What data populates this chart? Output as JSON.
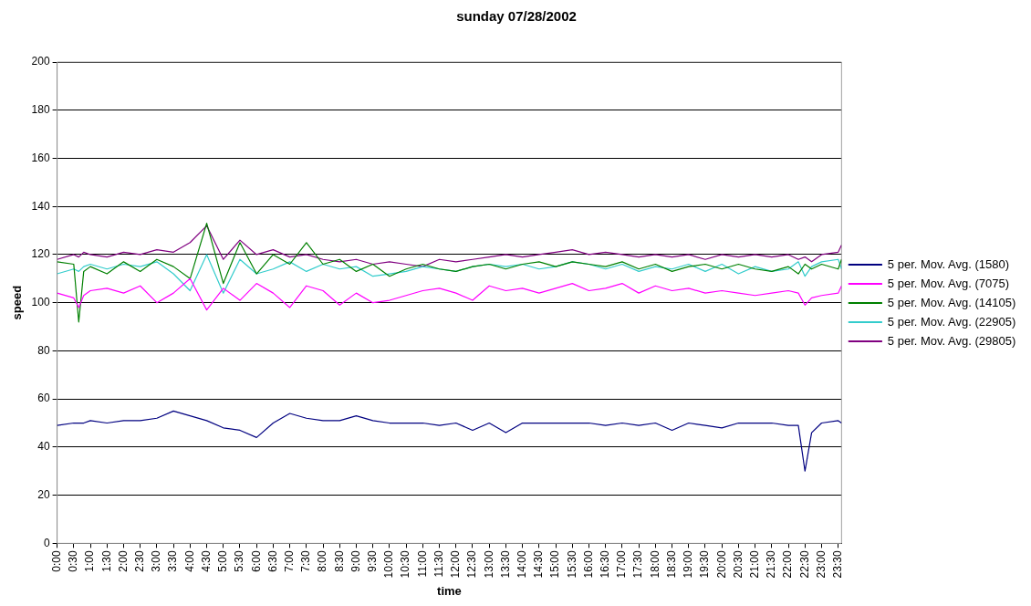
{
  "chart_data": {
    "type": "line",
    "title": "sunday 07/28/2002",
    "xlabel": "time",
    "ylabel": "speed",
    "x": [
      0,
      0.5,
      0.65,
      0.8,
      1,
      1.5,
      2,
      2.5,
      3,
      3.5,
      4,
      4.5,
      5,
      5.5,
      6,
      6.5,
      7,
      7.5,
      8,
      8.5,
      9,
      9.5,
      10,
      10.5,
      11,
      11.5,
      12,
      12.5,
      13,
      13.5,
      14,
      14.5,
      15,
      15.5,
      16,
      16.5,
      17,
      17.5,
      18,
      18.5,
      19,
      19.5,
      20,
      20.5,
      21,
      21.5,
      22,
      22.3,
      22.5,
      22.7,
      23,
      23.5,
      23.6
    ],
    "series": [
      {
        "name": "5 per. Mov. Avg. (1580)",
        "color": "#000080",
        "values": [
          49,
          50,
          50,
          50,
          51,
          50,
          51,
          51,
          52,
          55,
          53,
          51,
          48,
          47,
          44,
          50,
          54,
          52,
          51,
          51,
          53,
          51,
          50,
          50,
          50,
          49,
          50,
          47,
          50,
          46,
          50,
          50,
          50,
          50,
          50,
          49,
          50,
          49,
          50,
          47,
          50,
          49,
          48,
          50,
          50,
          50,
          49,
          49,
          30,
          46,
          50,
          51,
          50
        ]
      },
      {
        "name": "5 per. Mov. Avg. (7075)",
        "color": "#ff00ff",
        "values": [
          104,
          102,
          98,
          103,
          105,
          106,
          104,
          107,
          100,
          104,
          110,
          97,
          106,
          101,
          108,
          104,
          98,
          107,
          105,
          99,
          104,
          100,
          101,
          103,
          105,
          106,
          104,
          101,
          107,
          105,
          106,
          104,
          106,
          108,
          105,
          106,
          108,
          104,
          107,
          105,
          106,
          104,
          105,
          104,
          103,
          104,
          105,
          104,
          99,
          102,
          103,
          104,
          107
        ]
      },
      {
        "name": "5 per. Mov. Avg. (14105)",
        "color": "#008000",
        "values": [
          117,
          116,
          92,
          113,
          115,
          112,
          117,
          113,
          118,
          115,
          110,
          133,
          108,
          125,
          112,
          120,
          116,
          125,
          116,
          118,
          113,
          116,
          111,
          114,
          116,
          114,
          113,
          115,
          116,
          114,
          116,
          117,
          115,
          117,
          116,
          115,
          117,
          114,
          116,
          113,
          115,
          116,
          114,
          116,
          114,
          113,
          115,
          112,
          116,
          114,
          116,
          114,
          118
        ]
      },
      {
        "name": "5 per. Mov. Avg. (22905)",
        "color": "#33cccc",
        "values": [
          112,
          114,
          113,
          115,
          116,
          114,
          116,
          115,
          117,
          112,
          105,
          120,
          104,
          118,
          112,
          114,
          117,
          113,
          116,
          114,
          115,
          111,
          112,
          113,
          115,
          114,
          113,
          115,
          116,
          115,
          116,
          114,
          115,
          117,
          116,
          114,
          116,
          113,
          115,
          114,
          116,
          113,
          116,
          112,
          115,
          113,
          114,
          117,
          111,
          115,
          117,
          118,
          114
        ]
      },
      {
        "name": "5 per. Mov. Avg. (29805)",
        "color": "#800080",
        "values": [
          118,
          120,
          119,
          121,
          120,
          119,
          121,
          120,
          122,
          121,
          125,
          132,
          118,
          126,
          120,
          122,
          119,
          120,
          118,
          117,
          118,
          116,
          117,
          116,
          115,
          118,
          117,
          118,
          119,
          120,
          119,
          120,
          121,
          122,
          120,
          121,
          120,
          119,
          120,
          119,
          120,
          118,
          120,
          119,
          120,
          119,
          120,
          118,
          119,
          117,
          120,
          121,
          124
        ]
      }
    ],
    "xlim": [
      0,
      23.6
    ],
    "xticks": [
      {
        "value": 0,
        "label": "0:00"
      },
      {
        "value": 0.5,
        "label": "0:30"
      },
      {
        "value": 1,
        "label": "1:00"
      },
      {
        "value": 1.5,
        "label": "1:30"
      },
      {
        "value": 2,
        "label": "2:00"
      },
      {
        "value": 2.5,
        "label": "2:30"
      },
      {
        "value": 3,
        "label": "3:00"
      },
      {
        "value": 3.5,
        "label": "3:30"
      },
      {
        "value": 4,
        "label": "4:00"
      },
      {
        "value": 4.5,
        "label": "4:30"
      },
      {
        "value": 5,
        "label": "5:00"
      },
      {
        "value": 5.5,
        "label": "5:30"
      },
      {
        "value": 6,
        "label": "6:00"
      },
      {
        "value": 6.5,
        "label": "6:30"
      },
      {
        "value": 7,
        "label": "7:00"
      },
      {
        "value": 7.5,
        "label": "7:30"
      },
      {
        "value": 8,
        "label": "8:00"
      },
      {
        "value": 8.5,
        "label": "8:30"
      },
      {
        "value": 9,
        "label": "9:00"
      },
      {
        "value": 9.5,
        "label": "9:30"
      },
      {
        "value": 10,
        "label": "10:00"
      },
      {
        "value": 10.5,
        "label": "10:30"
      },
      {
        "value": 11,
        "label": "11:00"
      },
      {
        "value": 11.5,
        "label": "11:30"
      },
      {
        "value": 12,
        "label": "12:00"
      },
      {
        "value": 12.5,
        "label": "12:30"
      },
      {
        "value": 13,
        "label": "13:00"
      },
      {
        "value": 13.5,
        "label": "13:30"
      },
      {
        "value": 14,
        "label": "14:00"
      },
      {
        "value": 14.5,
        "label": "14:30"
      },
      {
        "value": 15,
        "label": "15:00"
      },
      {
        "value": 15.5,
        "label": "15:30"
      },
      {
        "value": 16,
        "label": "16:00"
      },
      {
        "value": 16.5,
        "label": "16:30"
      },
      {
        "value": 17,
        "label": "17:00"
      },
      {
        "value": 17.5,
        "label": "17:30"
      },
      {
        "value": 18,
        "label": "18:00"
      },
      {
        "value": 18.5,
        "label": "18:30"
      },
      {
        "value": 19,
        "label": "19:00"
      },
      {
        "value": 19.5,
        "label": "19:30"
      },
      {
        "value": 20,
        "label": "20:00"
      },
      {
        "value": 20.5,
        "label": "20:30"
      },
      {
        "value": 21,
        "label": "21:00"
      },
      {
        "value": 21.5,
        "label": "21:30"
      },
      {
        "value": 22,
        "label": "22:00"
      },
      {
        "value": 22.5,
        "label": "22:30"
      },
      {
        "value": 23,
        "label": "23:00"
      },
      {
        "value": 23.5,
        "label": "23:30"
      }
    ],
    "ylim": [
      0,
      200
    ],
    "yticks": [
      0,
      20,
      40,
      60,
      80,
      100,
      120,
      140,
      160,
      180,
      200
    ],
    "grid": "y",
    "legend": "right",
    "marker": "none",
    "line_style": "solid"
  }
}
